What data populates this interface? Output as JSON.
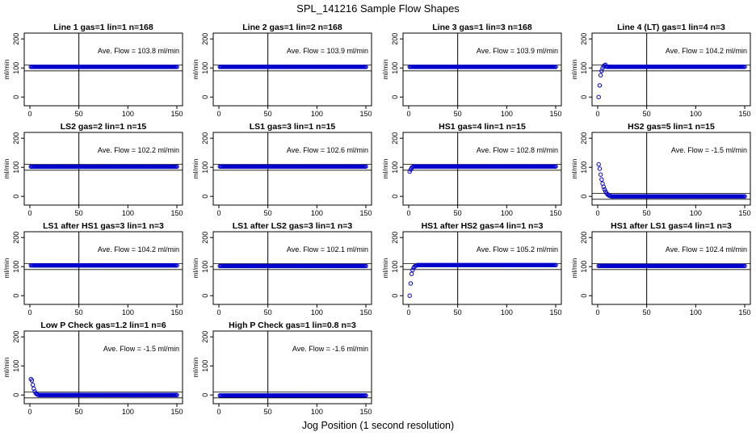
{
  "title": "SPL_141216  Sample Flow Shapes",
  "xlabel": "Jog Position (1 second resolution)",
  "ylabel": "ml/min",
  "xticks": [
    0,
    50,
    100,
    150
  ],
  "yticks": [
    0,
    100,
    200
  ],
  "colors": {
    "points": "#0000cc",
    "axes": "#000000"
  },
  "chart_data": [
    {
      "type": "scatter",
      "title": "Line 1 gas=1 lin=1 n=168",
      "annotation": "Ave. Flow = 103.8  ml/min",
      "flow": 103.8,
      "shape": "flat",
      "xlim": [
        0,
        150
      ],
      "ylim": [
        -30,
        220
      ]
    },
    {
      "type": "scatter",
      "title": "Line 2 gas=1 lin=2 n=168",
      "annotation": "Ave. Flow = 103.9  ml/min",
      "flow": 103.9,
      "shape": "flat",
      "xlim": [
        0,
        150
      ],
      "ylim": [
        -30,
        220
      ]
    },
    {
      "type": "scatter",
      "title": "Line 3 gas=1 lin=3 n=168",
      "annotation": "Ave. Flow = 103.9  ml/min",
      "flow": 103.9,
      "shape": "flat",
      "xlim": [
        0,
        150
      ],
      "ylim": [
        -30,
        220
      ]
    },
    {
      "type": "scatter",
      "title": "Line 4 (LT) gas=1 lin=4 n=3",
      "annotation": "Ave. Flow = 104.2  ml/min",
      "flow": 104.2,
      "shape": "rise",
      "start": [
        [
          1,
          0
        ],
        [
          2,
          40
        ],
        [
          3,
          75
        ],
        [
          4,
          90
        ],
        [
          5,
          100
        ],
        [
          6,
          106
        ],
        [
          7,
          109
        ],
        [
          8,
          111
        ]
      ],
      "xlim": [
        0,
        150
      ],
      "ylim": [
        -30,
        220
      ]
    },
    {
      "type": "scatter",
      "title": "LS2 gas=2 lin=1 n=15",
      "annotation": "Ave. Flow = 102.2  ml/min",
      "flow": 102.2,
      "shape": "flat",
      "xlim": [
        0,
        150
      ],
      "ylim": [
        -30,
        220
      ]
    },
    {
      "type": "scatter",
      "title": "LS1 gas=3 lin=1 n=15",
      "annotation": "Ave. Flow = 102.6  ml/min",
      "flow": 102.6,
      "shape": "flat",
      "xlim": [
        0,
        150
      ],
      "ylim": [
        -30,
        220
      ]
    },
    {
      "type": "scatter",
      "title": "HS1 gas=4 lin=1 n=15",
      "annotation": "Ave. Flow = 102.8  ml/min",
      "flow": 102.8,
      "shape": "rise",
      "start": [
        [
          1,
          85
        ],
        [
          2,
          92
        ],
        [
          3,
          98
        ],
        [
          4,
          101
        ],
        [
          5,
          103
        ]
      ],
      "xlim": [
        0,
        150
      ],
      "ylim": [
        -30,
        220
      ]
    },
    {
      "type": "scatter",
      "title": "HS2 gas=5 lin=1 n=15",
      "annotation": "Ave. Flow = -1.5  ml/min",
      "flow": -1.5,
      "shape": "decay",
      "start": [
        [
          1,
          110
        ],
        [
          2,
          95
        ],
        [
          3,
          75
        ],
        [
          4,
          58
        ],
        [
          5,
          44
        ],
        [
          6,
          33
        ],
        [
          7,
          24
        ],
        [
          8,
          17
        ],
        [
          9,
          11
        ],
        [
          10,
          7
        ],
        [
          11,
          4
        ],
        [
          12,
          2
        ],
        [
          13,
          1
        ],
        [
          14,
          0
        ]
      ],
      "xlim": [
        0,
        150
      ],
      "ylim": [
        -30,
        220
      ]
    },
    {
      "type": "scatter",
      "title": "LS1 after HS1 gas=3 lin=1 n=3",
      "annotation": "Ave. Flow = 104.2  ml/min",
      "flow": 104.2,
      "shape": "flat",
      "xlim": [
        0,
        150
      ],
      "ylim": [
        -30,
        220
      ]
    },
    {
      "type": "scatter",
      "title": "LS1 after LS2 gas=3 lin=1 n=3",
      "annotation": "Ave. Flow = 102.1  ml/min",
      "flow": 102.1,
      "shape": "flat",
      "xlim": [
        0,
        150
      ],
      "ylim": [
        -30,
        220
      ]
    },
    {
      "type": "scatter",
      "title": "HS1 after HS2 gas=4 lin=1 n=3",
      "annotation": "Ave. Flow = 105.2  ml/min",
      "flow": 105.2,
      "shape": "rise",
      "start": [
        [
          1,
          0
        ],
        [
          2,
          42
        ],
        [
          3,
          75
        ],
        [
          4,
          88
        ],
        [
          5,
          96
        ],
        [
          6,
          100
        ],
        [
          7,
          103
        ],
        [
          8,
          104
        ]
      ],
      "xlim": [
        0,
        150
      ],
      "ylim": [
        -30,
        220
      ]
    },
    {
      "type": "scatter",
      "title": "HS1 after LS1 gas=4 lin=1 n=3",
      "annotation": "Ave. Flow = 102.4  ml/min",
      "flow": 102.4,
      "shape": "flat",
      "xlim": [
        0,
        150
      ],
      "ylim": [
        -30,
        220
      ]
    },
    {
      "type": "scatter",
      "title": "Low P Check gas=1.2 lin=1 n=6",
      "annotation": "Ave. Flow = -1.5  ml/min",
      "flow": -1.5,
      "shape": "decay",
      "start": [
        [
          1,
          55
        ],
        [
          2,
          50
        ],
        [
          3,
          35
        ],
        [
          4,
          22
        ],
        [
          5,
          12
        ],
        [
          6,
          6
        ],
        [
          7,
          3
        ],
        [
          8,
          1
        ],
        [
          9,
          0
        ]
      ],
      "xlim": [
        0,
        150
      ],
      "ylim": [
        -30,
        220
      ]
    },
    {
      "type": "scatter",
      "title": "High P Check gas=1 lin=0.8 n=3",
      "annotation": "Ave. Flow = -1.6  ml/min",
      "flow": -1.6,
      "shape": "flat",
      "xlim": [
        0,
        150
      ],
      "ylim": [
        -30,
        220
      ]
    }
  ]
}
